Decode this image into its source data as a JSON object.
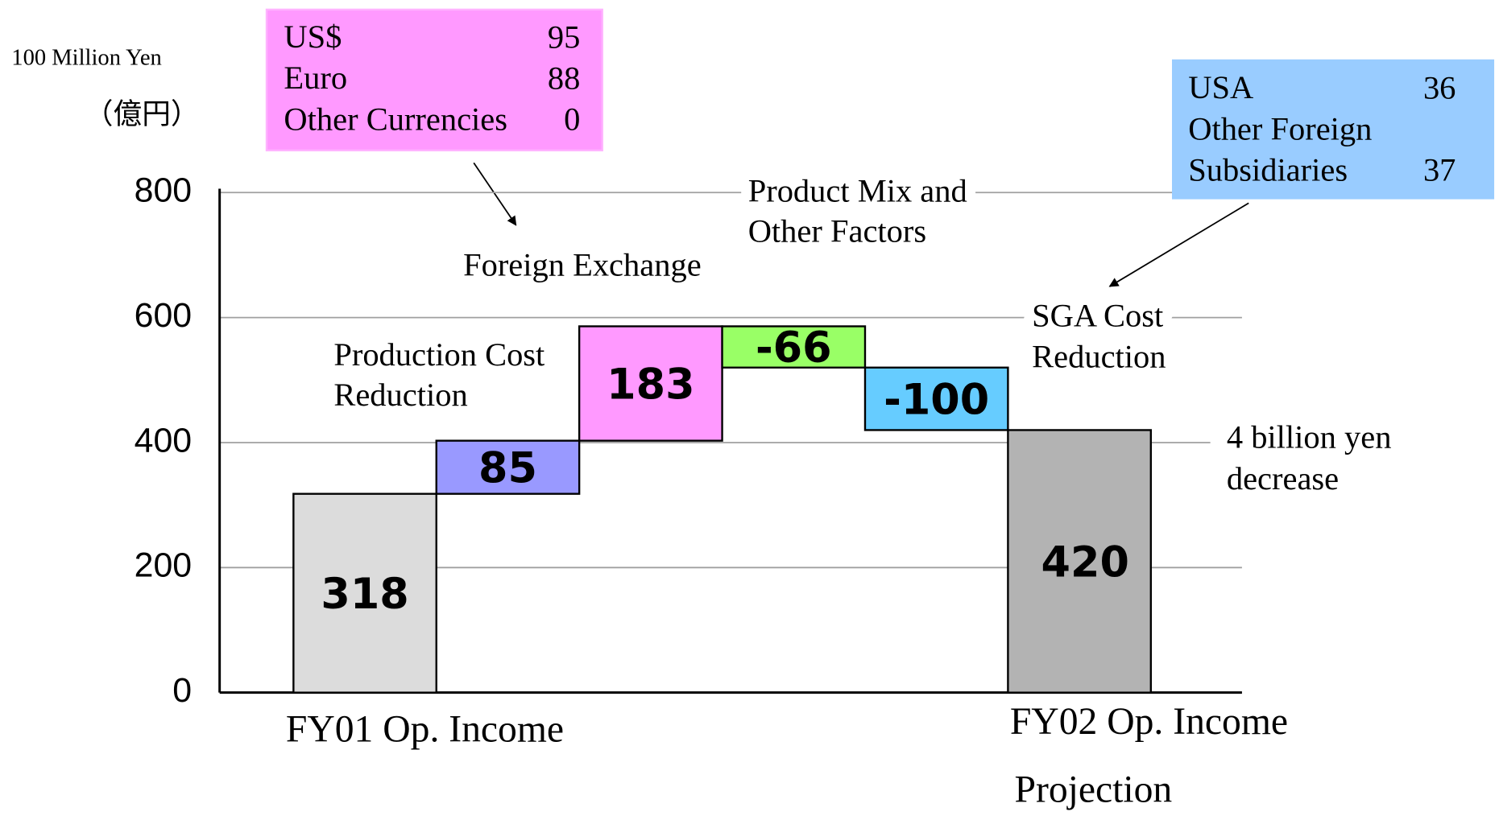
{
  "chart_data": {
    "type": "waterfall",
    "unit_label": "100 Million Yen",
    "unit_label_ja": "（億円）",
    "categories": [
      [
        "FY01 Op. Income"
      ],
      [
        "Production Cost",
        "Reduction"
      ],
      [
        "Foreign Exchange"
      ],
      [
        "Product Mix and",
        "Other Factors"
      ],
      [
        "SGA Cost",
        "Reduction"
      ],
      [
        "FY02 Op. Income",
        "Projection"
      ]
    ],
    "values": [
      318,
      85,
      183,
      -66,
      -100,
      420
    ],
    "colors": [
      "#dcdcdc",
      "#9999ff",
      "#ff99ff",
      "#99ff66",
      "#66ccff",
      "#b3b3b3"
    ],
    "ylim": [
      0,
      800
    ],
    "yticks": [
      0,
      200,
      400,
      600,
      800
    ],
    "grid": true,
    "annotations": [
      {
        "text": [
          "4 billion yen",
          "decrease"
        ]
      }
    ],
    "callouts": [
      {
        "color": "#ff99ff",
        "rows": [
          {
            "label": [
              "US$"
            ],
            "value": 95
          },
          {
            "label": [
              "Euro"
            ],
            "value": 88
          },
          {
            "label": [
              "Other Currencies"
            ],
            "value": 0
          }
        ]
      },
      {
        "color": "#99ccff",
        "rows": [
          {
            "label": [
              "USA"
            ],
            "value": 36
          },
          {
            "label": [
              "Other Foreign",
              "Subsidiaries"
            ],
            "value": 37
          }
        ]
      }
    ]
  }
}
